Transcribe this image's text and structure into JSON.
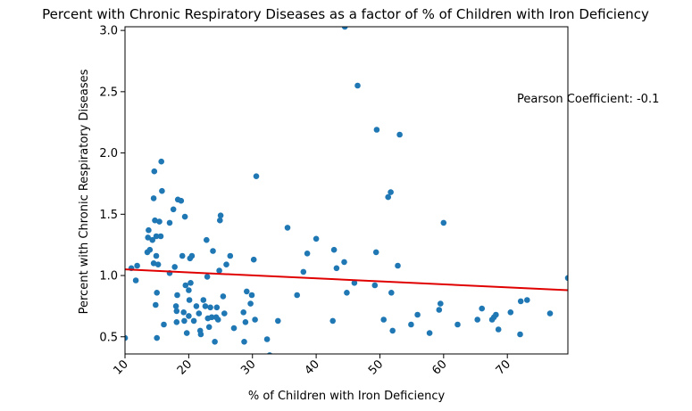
{
  "chart_data": {
    "type": "scatter",
    "title": "Percent with Chronic Respiratory Diseases as a factor of % of Children with Iron Deficiency",
    "xlabel": "% of Children with Iron Deficiency",
    "ylabel": "Percent with Chronic Respiratory Diseases",
    "xlim": [
      10,
      79.5
    ],
    "ylim": [
      0.36,
      3.03
    ],
    "xticks": [
      "10",
      "20",
      "30",
      "40",
      "50",
      "60",
      "70"
    ],
    "yticks": [
      "0.5",
      "1.0",
      "1.5",
      "2.0",
      "2.5",
      "3.0"
    ],
    "grid": false,
    "legend": "none",
    "point_color": "#1f77b4",
    "trend_color": "#e00000",
    "annotation": "Pearson Coefficient: -0.1",
    "trendline": {
      "x": [
        10,
        79.5
      ],
      "y": [
        1.05,
        0.88
      ]
    },
    "points": [
      [
        10.0,
        0.49
      ],
      [
        11.0,
        1.06
      ],
      [
        11.7,
        0.96
      ],
      [
        11.9,
        1.08
      ],
      [
        13.5,
        1.19
      ],
      [
        13.6,
        1.31
      ],
      [
        13.7,
        1.37
      ],
      [
        13.9,
        1.21
      ],
      [
        14.3,
        1.29
      ],
      [
        14.5,
        1.1
      ],
      [
        14.5,
        1.63
      ],
      [
        14.6,
        1.85
      ],
      [
        14.7,
        1.45
      ],
      [
        14.8,
        0.76
      ],
      [
        14.9,
        1.16
      ],
      [
        14.9,
        1.32
      ],
      [
        15.0,
        0.86
      ],
      [
        15.0,
        0.49
      ],
      [
        15.2,
        1.09
      ],
      [
        15.4,
        1.44
      ],
      [
        15.6,
        1.32
      ],
      [
        15.7,
        1.93
      ],
      [
        15.8,
        1.69
      ],
      [
        16.1,
        0.6
      ],
      [
        17.0,
        1.43
      ],
      [
        17.0,
        1.02
      ],
      [
        17.6,
        1.54
      ],
      [
        17.8,
        1.07
      ],
      [
        18.0,
        0.75
      ],
      [
        18.1,
        0.71
      ],
      [
        18.1,
        0.62
      ],
      [
        18.2,
        0.84
      ],
      [
        18.3,
        1.62
      ],
      [
        18.8,
        1.61
      ],
      [
        19.0,
        1.16
      ],
      [
        19.2,
        0.7
      ],
      [
        19.3,
        0.63
      ],
      [
        19.4,
        1.48
      ],
      [
        19.5,
        0.92
      ],
      [
        19.7,
        0.53
      ],
      [
        20.0,
        0.67
      ],
      [
        20.0,
        0.88
      ],
      [
        20.1,
        0.8
      ],
      [
        20.2,
        1.14
      ],
      [
        20.3,
        0.94
      ],
      [
        20.5,
        1.16
      ],
      [
        20.8,
        0.63
      ],
      [
        21.2,
        0.75
      ],
      [
        21.6,
        0.69
      ],
      [
        21.8,
        0.55
      ],
      [
        21.9,
        0.52
      ],
      [
        22.3,
        0.8
      ],
      [
        22.6,
        0.75
      ],
      [
        22.8,
        1.29
      ],
      [
        22.9,
        0.99
      ],
      [
        23.0,
        0.65
      ],
      [
        23.2,
        0.58
      ],
      [
        23.4,
        0.74
      ],
      [
        23.6,
        0.66
      ],
      [
        23.8,
        1.2
      ],
      [
        24.1,
        0.46
      ],
      [
        24.3,
        0.66
      ],
      [
        24.4,
        0.74
      ],
      [
        24.6,
        0.64
      ],
      [
        24.8,
        1.04
      ],
      [
        24.9,
        1.45
      ],
      [
        25.0,
        1.49
      ],
      [
        25.4,
        0.83
      ],
      [
        25.6,
        0.69
      ],
      [
        25.9,
        1.09
      ],
      [
        26.5,
        1.16
      ],
      [
        27.1,
        0.57
      ],
      [
        28.6,
        0.7
      ],
      [
        28.7,
        0.46
      ],
      [
        28.9,
        0.62
      ],
      [
        29.1,
        0.87
      ],
      [
        29.7,
        0.77
      ],
      [
        29.9,
        0.84
      ],
      [
        30.2,
        1.13
      ],
      [
        30.4,
        0.64
      ],
      [
        30.6,
        1.81
      ],
      [
        32.3,
        0.48
      ],
      [
        32.7,
        0.35
      ],
      [
        34.0,
        0.63
      ],
      [
        35.5,
        1.39
      ],
      [
        37.0,
        0.84
      ],
      [
        38.0,
        1.03
      ],
      [
        38.6,
        1.18
      ],
      [
        40.0,
        1.3
      ],
      [
        42.6,
        0.63
      ],
      [
        42.8,
        1.21
      ],
      [
        43.2,
        1.06
      ],
      [
        44.4,
        1.11
      ],
      [
        44.5,
        3.03
      ],
      [
        44.8,
        0.86
      ],
      [
        46.0,
        0.94
      ],
      [
        46.5,
        2.55
      ],
      [
        49.2,
        0.92
      ],
      [
        49.4,
        1.19
      ],
      [
        49.5,
        2.19
      ],
      [
        50.6,
        0.64
      ],
      [
        51.3,
        1.64
      ],
      [
        51.7,
        1.68
      ],
      [
        51.8,
        0.86
      ],
      [
        52.0,
        0.55
      ],
      [
        52.8,
        1.08
      ],
      [
        53.1,
        2.15
      ],
      [
        54.9,
        0.6
      ],
      [
        55.9,
        0.68
      ],
      [
        57.8,
        0.53
      ],
      [
        59.3,
        0.72
      ],
      [
        59.5,
        0.77
      ],
      [
        60.0,
        1.43
      ],
      [
        62.2,
        0.6
      ],
      [
        65.3,
        0.64
      ],
      [
        66.0,
        0.73
      ],
      [
        67.6,
        0.64
      ],
      [
        67.9,
        0.66
      ],
      [
        68.2,
        0.68
      ],
      [
        68.6,
        0.56
      ],
      [
        70.5,
        0.7
      ],
      [
        72.0,
        0.52
      ],
      [
        72.1,
        0.79
      ],
      [
        73.1,
        0.8
      ],
      [
        76.7,
        0.69
      ],
      [
        79.5,
        0.98
      ]
    ]
  }
}
